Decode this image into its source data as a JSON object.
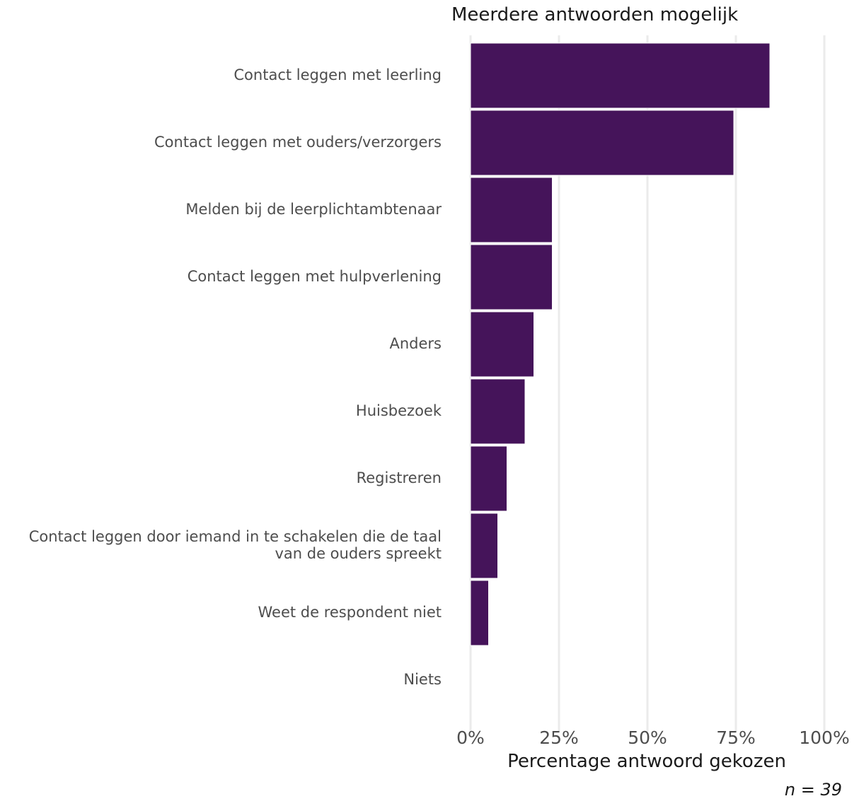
{
  "chart_data": {
    "type": "bar",
    "orientation": "horizontal",
    "subtitle": "Meerdere antwoorden mogelijk",
    "xlabel": "Percentage antwoord gekozen",
    "caption": "n = 39",
    "xlim": [
      0,
      100
    ],
    "x_ticks": [
      0,
      25,
      50,
      75,
      100
    ],
    "x_tick_labels": [
      "0%",
      "25%",
      "50%",
      "75%",
      "100%"
    ],
    "categories": [
      "Contact leggen met leerling",
      "Contact leggen met ouders/verzorgers",
      "Melden bij de leerplichtambtenaar",
      "Contact leggen met hulpverlening",
      "Anders",
      "Huisbezoek",
      "Registreren",
      "Contact leggen door iemand in te schakelen die de taal van de ouders spreekt",
      "Weet de respondent niet",
      "Niets"
    ],
    "category_label_lines": [
      [
        "Contact leggen met leerling"
      ],
      [
        "Contact leggen met ouders/verzorgers"
      ],
      [
        "Melden bij de leerplichtambtenaar"
      ],
      [
        "Contact leggen met hulpverlening"
      ],
      [
        "Anders"
      ],
      [
        "Huisbezoek"
      ],
      [
        "Registreren"
      ],
      [
        "Contact leggen door iemand in te schakelen die de taal",
        "van de ouders spreekt"
      ],
      [
        "Weet de respondent niet"
      ],
      [
        "Niets"
      ]
    ],
    "values": [
      84.6,
      74.4,
      23.1,
      23.1,
      17.9,
      15.4,
      10.3,
      7.7,
      5.1,
      0
    ],
    "grid": "vertical major",
    "legend": "none",
    "bar_color": "#45145a",
    "grid_color": "#ebebeb"
  }
}
